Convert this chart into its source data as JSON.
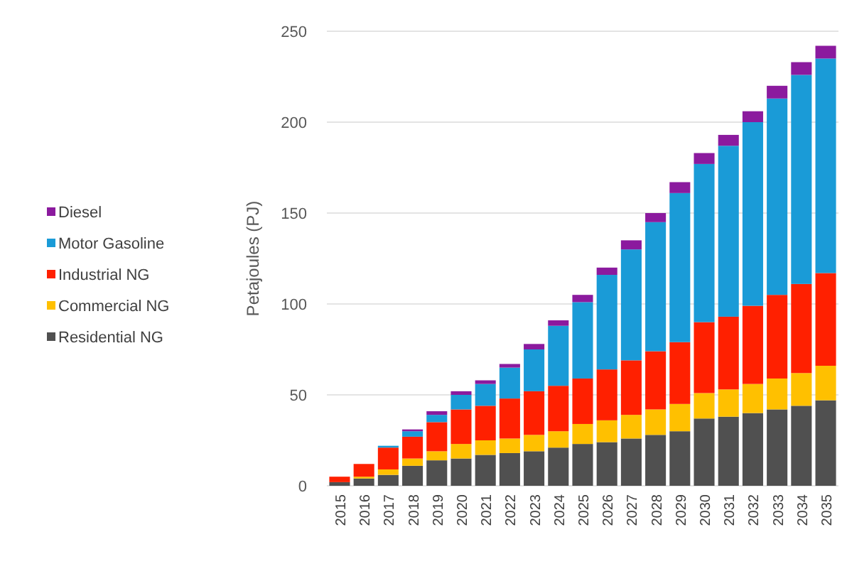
{
  "chart_data": {
    "type": "bar",
    "stacked": true,
    "ylabel": "Petajoules (PJ)",
    "categories": [
      "2015",
      "2016",
      "2017",
      "2018",
      "2019",
      "2020",
      "2021",
      "2022",
      "2023",
      "2024",
      "2025",
      "2026",
      "2027",
      "2028",
      "2029",
      "2030",
      "2031",
      "2032",
      "2033",
      "2034",
      "2035"
    ],
    "series": [
      {
        "name": "Residential NG",
        "color": "#505050",
        "values": [
          2,
          4,
          6,
          11,
          14,
          15,
          17,
          18,
          19,
          21,
          23,
          24,
          26,
          28,
          30,
          37,
          38,
          40,
          42,
          44,
          47
        ]
      },
      {
        "name": "Commercial NG",
        "color": "#ffc000",
        "values": [
          0,
          1,
          3,
          4,
          5,
          8,
          8,
          8,
          9,
          9,
          11,
          12,
          13,
          14,
          15,
          14,
          15,
          16,
          17,
          18,
          19
        ]
      },
      {
        "name": "Industrial NG",
        "color": "#ff2000",
        "values": [
          3,
          7,
          12,
          12,
          16,
          19,
          19,
          22,
          24,
          25,
          25,
          28,
          30,
          32,
          34,
          39,
          40,
          43,
          46,
          49,
          51
        ]
      },
      {
        "name": "Motor Gasoline",
        "color": "#1a9bd7",
        "values": [
          0,
          0,
          1,
          3,
          4,
          8,
          12,
          17,
          23,
          33,
          42,
          52,
          61,
          71,
          82,
          87,
          94,
          101,
          108,
          115,
          118
        ]
      },
      {
        "name": "Diesel",
        "color": "#8b1a9e",
        "values": [
          0,
          0,
          0,
          1,
          2,
          2,
          2,
          2,
          3,
          3,
          4,
          4,
          5,
          5,
          6,
          6,
          6,
          6,
          7,
          7,
          7
        ]
      }
    ],
    "ylim": [
      0,
      250
    ],
    "yticks": [
      0,
      50,
      100,
      150,
      200,
      250
    ],
    "grid": "y",
    "legend": "left"
  }
}
